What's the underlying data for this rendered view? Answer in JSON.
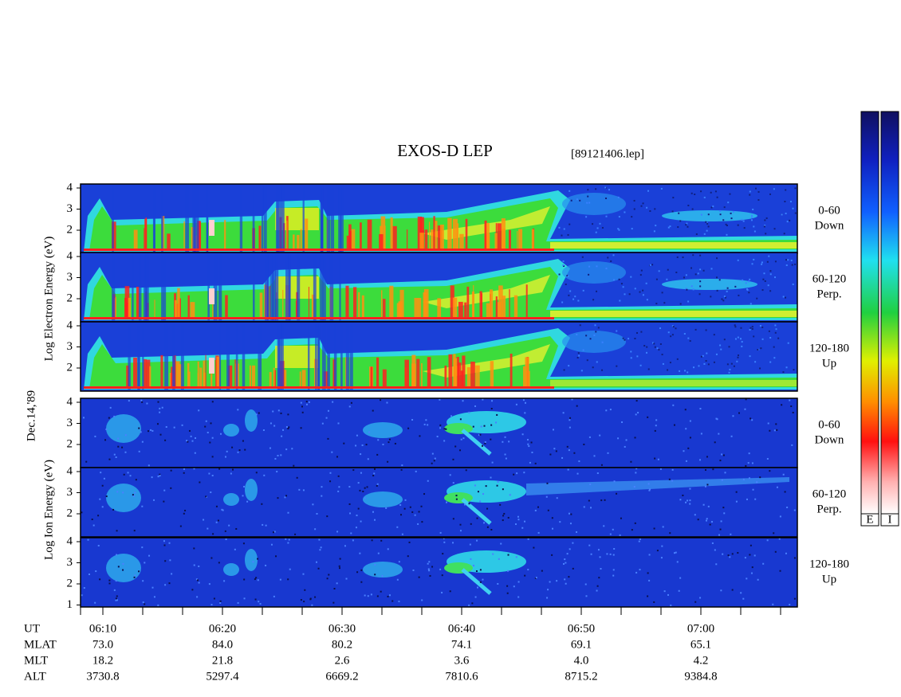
{
  "header": {
    "title": "EXOS-D LEP",
    "file": "[89121406.lep]"
  },
  "date": "Dec.14,'89",
  "electron": {
    "axis_label": "Log  Electron  Energy (eV)",
    "panels": [
      {
        "angle": "0-60",
        "direction": "Down",
        "ticks": [
          "4",
          "3",
          "2"
        ]
      },
      {
        "angle": "60-120",
        "direction": "Perp.",
        "ticks": [
          "4",
          "3",
          "2"
        ]
      },
      {
        "angle": "120-180",
        "direction": "Up",
        "ticks": [
          "4",
          "3",
          "2"
        ]
      }
    ]
  },
  "ion": {
    "axis_label": "Log  Ion  Energy (eV)",
    "panels": [
      {
        "angle": "0-60",
        "direction": "Down",
        "ticks": [
          "4",
          "3",
          "2"
        ]
      },
      {
        "angle": "60-120",
        "direction": "Perp.",
        "ticks": [
          "4",
          "3",
          "2"
        ]
      },
      {
        "angle": "120-180",
        "direction": "Up",
        "ticks": [
          "4",
          "3",
          "2",
          "1"
        ]
      }
    ]
  },
  "orbit": {
    "rows": [
      {
        "label": "UT",
        "values": [
          "06:10",
          "06:20",
          "06:30",
          "06:40",
          "06:50",
          "07:00"
        ]
      },
      {
        "label": "MLAT",
        "values": [
          "73.0",
          "84.0",
          "80.2",
          "74.1",
          "69.1",
          "65.1"
        ]
      },
      {
        "label": "MLT",
        "values": [
          "18.2",
          "21.8",
          "2.6",
          "3.6",
          "4.0",
          "4.2"
        ]
      },
      {
        "label": "ALT",
        "values": [
          "3730.8",
          "5297.4",
          "6669.2",
          "7810.6",
          "8715.2",
          "9384.8"
        ]
      }
    ]
  },
  "colorbar": {
    "labels": [
      "E",
      "I"
    ]
  }
}
